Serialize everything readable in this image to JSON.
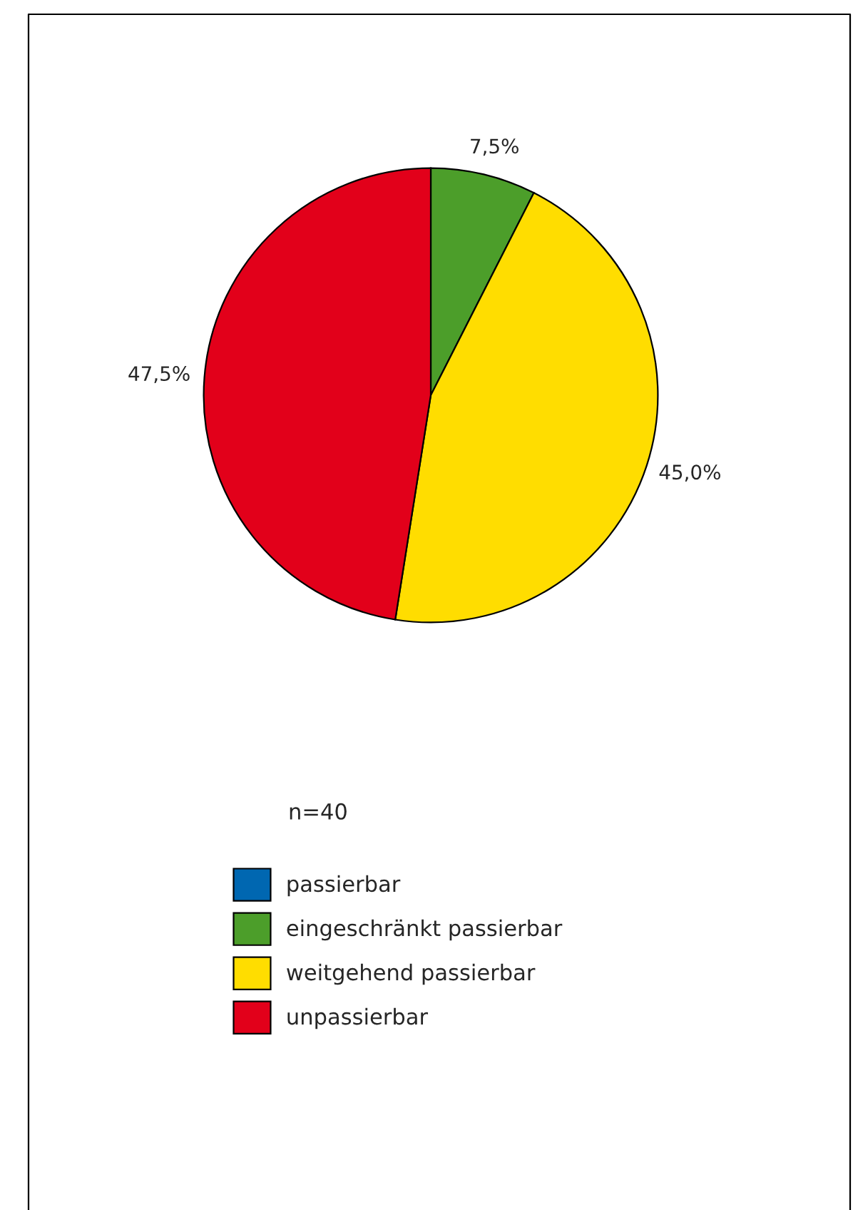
{
  "chart_data": {
    "type": "pie",
    "categories": [
      "passierbar",
      "eingeschränkt passierbar",
      "weitgehend passierbar",
      "unpassierbar"
    ],
    "values": [
      0,
      7.5,
      45.0,
      47.5
    ],
    "value_labels": [
      null,
      "7,5%",
      "45,0%",
      "47,5%"
    ],
    "colors": [
      "#0067b1",
      "#4c9e2a",
      "#ffdd00",
      "#e2001a"
    ],
    "annotations": [
      "n=40"
    ],
    "legend": "bottom"
  }
}
